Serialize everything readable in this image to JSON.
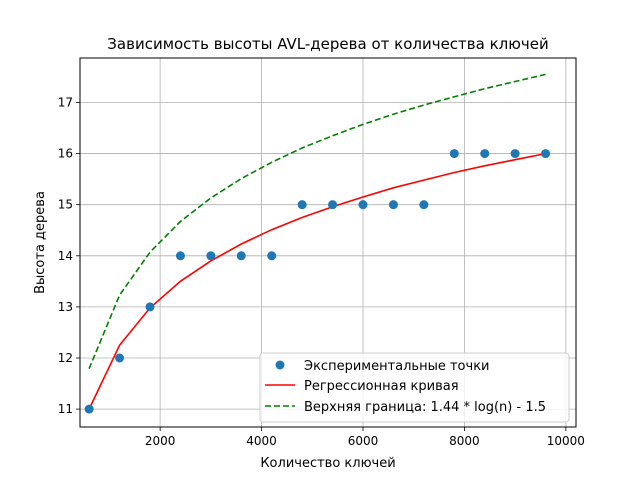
{
  "chart_data": {
    "type": "line",
    "title": "Зависимость высоты AVL-дерева от количества ключей",
    "xlabel": "Количество ключей",
    "ylabel": "Высота дерева",
    "xlim": [
      420,
      10200
    ],
    "ylim": [
      10.65,
      17.87
    ],
    "x_ticks": [
      2000,
      4000,
      6000,
      8000,
      10000
    ],
    "y_ticks": [
      11,
      12,
      13,
      14,
      15,
      16,
      17
    ],
    "grid": true,
    "legend_position": "lower right",
    "series": [
      {
        "name": "Экспериментальные точки",
        "kind": "scatter",
        "color": "#1f77b4",
        "x": [
          600,
          1200,
          1800,
          2400,
          3000,
          3600,
          4200,
          4800,
          5400,
          6000,
          6600,
          7200,
          7800,
          8400,
          9000,
          9600
        ],
        "y": [
          11,
          12,
          13,
          14,
          14,
          14,
          14,
          15,
          15,
          15,
          15,
          15,
          16,
          16,
          16,
          16
        ]
      },
      {
        "name": "Регрессионная кривая",
        "kind": "line",
        "color": "#ff0000",
        "dash": "solid",
        "x": [
          600,
          1200,
          1800,
          2400,
          3000,
          3600,
          4200,
          4800,
          5400,
          6000,
          6600,
          7200,
          7800,
          8400,
          9000,
          9600
        ],
        "y": [
          11.0,
          12.25,
          12.98,
          13.5,
          13.9,
          14.23,
          14.51,
          14.75,
          14.96,
          15.15,
          15.33,
          15.48,
          15.63,
          15.76,
          15.88,
          16.0
        ]
      },
      {
        "name": "Верхняя граница: 1.44 * log(n) - 1.5",
        "kind": "line",
        "color": "#008000",
        "dash": "dashed",
        "x": [
          600,
          1200,
          1800,
          2400,
          3000,
          3600,
          4200,
          4800,
          5400,
          6000,
          6600,
          7200,
          7800,
          8400,
          9000,
          9600
        ],
        "y": [
          11.79,
          13.23,
          14.07,
          14.67,
          15.13,
          15.51,
          15.83,
          16.11,
          16.35,
          16.57,
          16.77,
          16.95,
          17.11,
          17.27,
          17.41,
          17.55
        ]
      }
    ]
  }
}
